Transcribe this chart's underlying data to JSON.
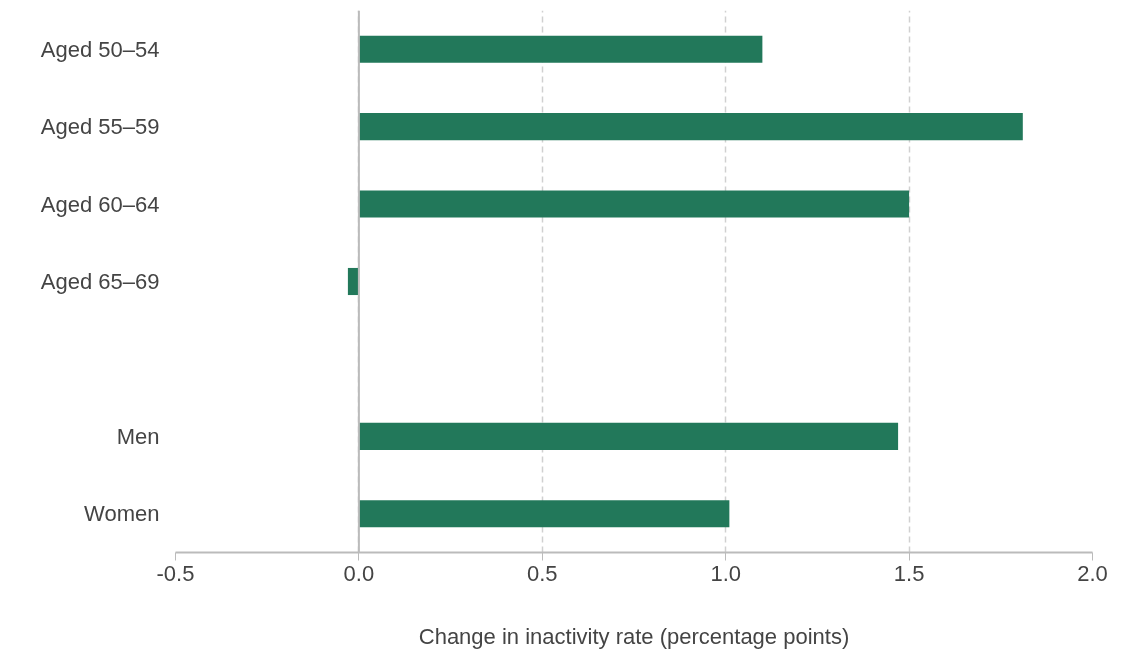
{
  "chart_data": {
    "type": "bar",
    "orientation": "horizontal",
    "xlabel": "Change in inactivity rate (percentage points)",
    "categories": [
      "Aged 50–54",
      "Aged 55–59",
      "Aged 60–64",
      "Aged 65–69",
      null,
      "Men",
      "Women"
    ],
    "values": [
      1.1,
      1.81,
      1.5,
      -0.03,
      null,
      1.47,
      1.01
    ],
    "color": "#22785a",
    "xlim": [
      -0.5,
      2.0
    ],
    "xticks": [
      {
        "value": -0.5,
        "label": "-0.5"
      },
      {
        "value": 0,
        "label": "0.0"
      },
      {
        "value": 0.5,
        "label": "0.5"
      },
      {
        "value": 1.0,
        "label": "1.0"
      },
      {
        "value": 1.5,
        "label": "1.5"
      },
      {
        "value": 2.0,
        "label": "2.0"
      }
    ],
    "grid": "x"
  }
}
